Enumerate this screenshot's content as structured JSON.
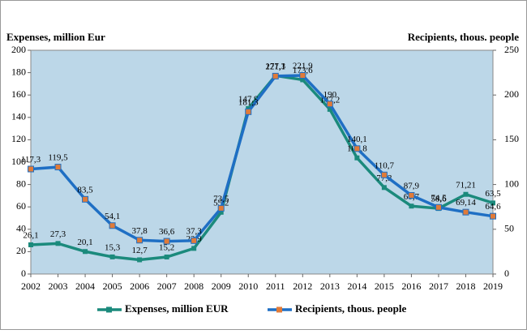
{
  "chart_data": {
    "type": "line",
    "y_axis_label": "Expenses, million Eur",
    "y2_axis_label": "Recipients, thous. people",
    "categories": [
      "2002",
      "2003",
      "2004",
      "2005",
      "2006",
      "2007",
      "2008",
      "2009",
      "2010",
      "2011",
      "2012",
      "2013",
      "2014",
      "2015",
      "2016",
      "2017",
      "2018",
      "2019"
    ],
    "series": [
      {
        "name": "Expenses, million EUR",
        "color": "#1b8a7c",
        "axis": "y",
        "values": [
          26.1,
          27.3,
          20.1,
          15.3,
          12.7,
          15.2,
          22.9,
          55.2,
          147.9,
          177.3,
          173.6,
          147.2,
          103.8,
          77.3,
          60.7,
          58.6,
          71.21,
          63.5
        ],
        "value_labels": [
          "26,1",
          "27,3",
          "20,1",
          "15,3",
          "12,7",
          "15,2",
          "22,9",
          "55,2",
          "147,9",
          "177,3",
          "173,6",
          "147,2",
          "103,8",
          "77,3",
          "60,7",
          "58,6",
          "71,21",
          "63,5"
        ]
      },
      {
        "name": "Recipients, thous. people",
        "color": "#1f6fc4",
        "marker_color": "#e07b39",
        "axis": "y2",
        "values": [
          117.3,
          119.5,
          83.5,
          54.1,
          37.8,
          36.6,
          37.3,
          73.5,
          181.3,
          221.1,
          221.9,
          190,
          140.1,
          110.7,
          87.9,
          74.5,
          69.14,
          64.6
        ],
        "value_labels": [
          "117,3",
          "119,5",
          "83,5",
          "54,1",
          "37,8",
          "36,6",
          "37,3",
          "73,5",
          "181,3",
          "221,1",
          "221,9",
          "190",
          "140,1",
          "110,7",
          "87,9",
          "74,5",
          "69,14",
          "64,6"
        ]
      }
    ],
    "ylim": [
      0,
      200
    ],
    "yticks": [
      0,
      20,
      40,
      60,
      80,
      100,
      120,
      140,
      160,
      180,
      200
    ],
    "y2lim": [
      0,
      250
    ],
    "y2ticks": [
      0,
      50,
      100,
      150,
      200,
      250
    ],
    "background": "#bcd7e8"
  }
}
